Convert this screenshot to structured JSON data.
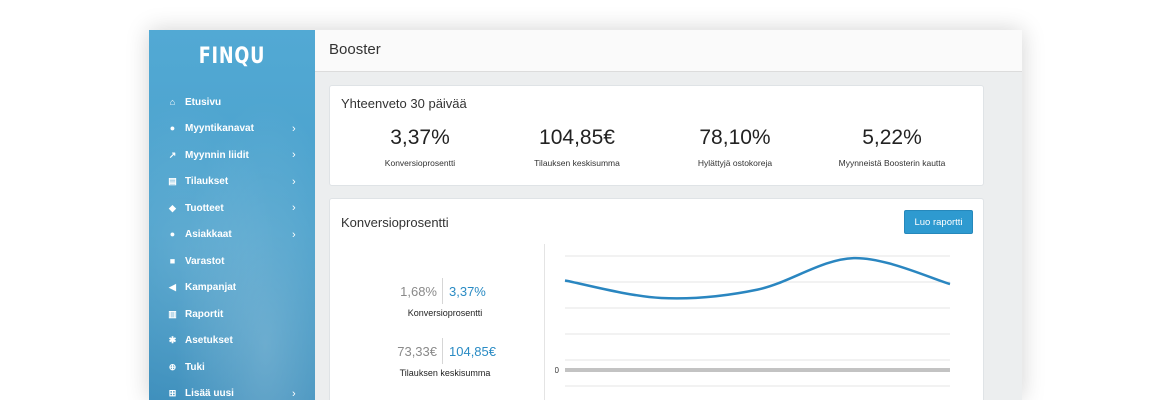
{
  "app": {
    "logo": "FINQU"
  },
  "sidebar": {
    "items": [
      {
        "label": "Etusivu",
        "icon": "home-icon",
        "glyph": "⌂",
        "has_submenu": false
      },
      {
        "label": "Myyntikanavat",
        "icon": "globe-icon",
        "glyph": "●",
        "has_submenu": true
      },
      {
        "label": "Myynnin liidit",
        "icon": "line-chart-icon",
        "glyph": "↗",
        "has_submenu": true
      },
      {
        "label": "Tilaukset",
        "icon": "file-icon",
        "glyph": "▤",
        "has_submenu": true
      },
      {
        "label": "Tuotteet",
        "icon": "tag-icon",
        "glyph": "◆",
        "has_submenu": true
      },
      {
        "label": "Asiakkaat",
        "icon": "users-icon",
        "glyph": "●",
        "has_submenu": true
      },
      {
        "label": "Varastot",
        "icon": "building-icon",
        "glyph": "■",
        "has_submenu": false
      },
      {
        "label": "Kampanjat",
        "icon": "megaphone-icon",
        "glyph": "◀",
        "has_submenu": false
      },
      {
        "label": "Raportit",
        "icon": "bar-chart-icon",
        "glyph": "▥",
        "has_submenu": false
      },
      {
        "label": "Asetukset",
        "icon": "gear-icon",
        "glyph": "✱",
        "has_submenu": false
      },
      {
        "label": "Tuki",
        "icon": "lifebuoy-icon",
        "glyph": "⊕",
        "has_submenu": false
      },
      {
        "label": "Lisää uusi",
        "icon": "plus-square-icon",
        "glyph": "⊞",
        "has_submenu": true
      }
    ],
    "chevron": "›"
  },
  "header": {
    "title": "Booster"
  },
  "summary": {
    "title": "Yhteenveto 30 päivää",
    "kpis": [
      {
        "value": "3,37%",
        "label": "Konversioprosentti"
      },
      {
        "value": "104,85€",
        "label": "Tilauksen keskisumma"
      },
      {
        "value": "78,10%",
        "label": "Hylättyjä ostokoreja"
      },
      {
        "value": "5,22%",
        "label": "Myynneistä Boosterin kautta"
      }
    ]
  },
  "conversion": {
    "title": "Konversioprosentti",
    "report_button": "Luo raportti",
    "comparisons": [
      {
        "previous": "1,68%",
        "current": "3,37%",
        "label": "Konversioprosentti"
      },
      {
        "previous": "73,33€",
        "current": "104,85€",
        "label": "Tilauksen keskisumma"
      }
    ]
  },
  "chart_data": {
    "type": "line",
    "title": "",
    "xlabel": "",
    "ylabel": "",
    "y_tick_labels": [
      "0"
    ],
    "grid": true,
    "series": [
      {
        "color": "#2a86c0",
        "values": [
          0.55,
          0.3,
          0.42,
          0.87,
          0.5
        ]
      }
    ],
    "baseline_color": "#c3c3c3"
  },
  "colors": {
    "accent": "#2e9ad0",
    "sidebar": "#4aa0cb",
    "current_value": "#2a8bc4"
  }
}
